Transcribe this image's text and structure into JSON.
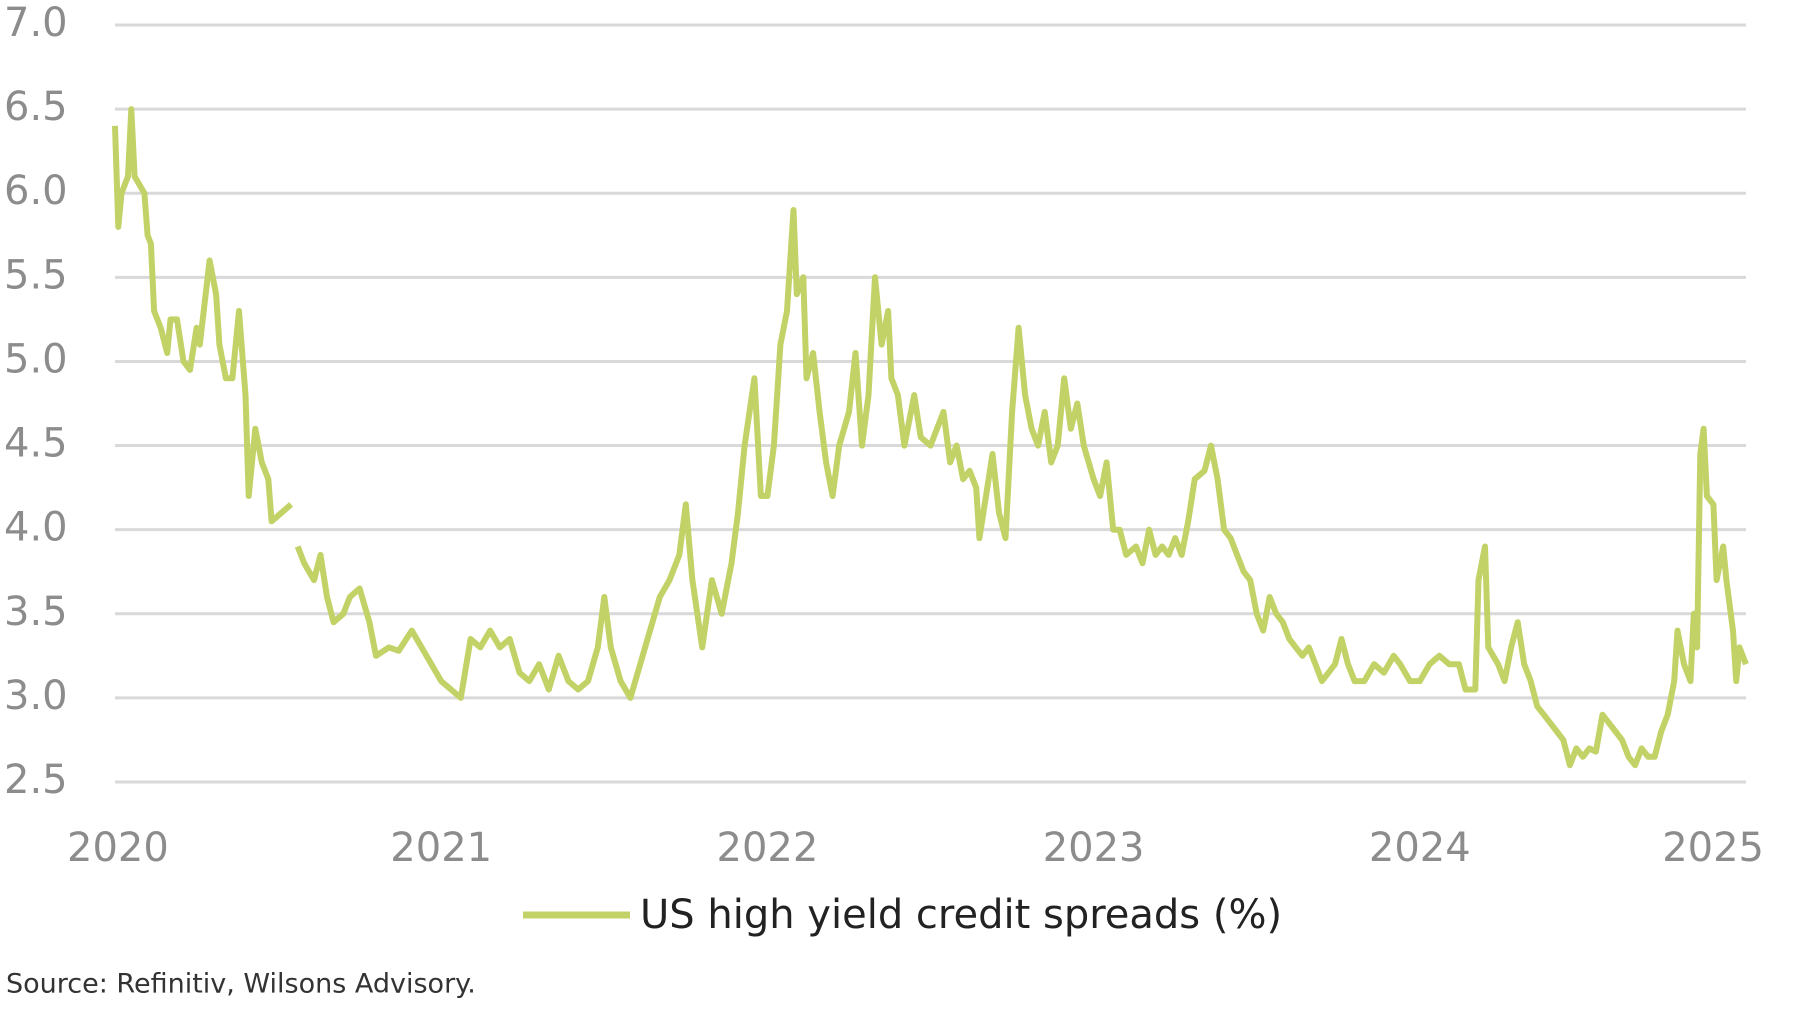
{
  "chart_data": {
    "type": "line",
    "x": [
      2020.0,
      2020.01,
      2020.02,
      2020.04,
      2020.05,
      2020.06,
      2020.09,
      2020.1,
      2020.11,
      2020.12,
      2020.14,
      2020.16,
      2020.17,
      2020.19,
      2020.21,
      2020.23,
      2020.25,
      2020.26,
      2020.29,
      2020.31,
      2020.32,
      2020.34,
      2020.36,
      2020.38,
      2020.4,
      2020.41,
      2020.43,
      2020.45,
      2020.47,
      2020.48,
      2020.51,
      2020.54,
      2020.55,
      2020.56,
      2020.58,
      2020.61,
      2020.63,
      2020.65,
      2020.67,
      2020.7,
      2020.72,
      2020.75,
      2020.78,
      2020.8,
      2020.84,
      2020.87,
      2020.91,
      2020.94,
      2020.97,
      2021.0,
      2021.03,
      2021.06,
      2021.09,
      2021.12,
      2021.15,
      2021.18,
      2021.21,
      2021.24,
      2021.27,
      2021.3,
      2021.33,
      2021.36,
      2021.39,
      2021.42,
      2021.45,
      2021.48,
      2021.5,
      2021.52,
      2021.55,
      2021.58,
      2021.61,
      2021.64,
      2021.67,
      2021.7,
      2021.73,
      2021.75,
      2021.77,
      2021.8,
      2021.83,
      2021.86,
      2021.89,
      2021.91,
      2021.93,
      2021.96,
      2021.98,
      2022.0,
      2022.02,
      2022.04,
      2022.06,
      2022.08,
      2022.09,
      2022.11,
      2022.12,
      2022.14,
      2022.16,
      2022.18,
      2022.2,
      2022.22,
      2022.25,
      2022.27,
      2022.29,
      2022.31,
      2022.33,
      2022.35,
      2022.37,
      2022.38,
      2022.4,
      2022.42,
      2022.45,
      2022.47,
      2022.5,
      2022.52,
      2022.54,
      2022.56,
      2022.58,
      2022.6,
      2022.62,
      2022.64,
      2022.65,
      2022.67,
      2022.69,
      2022.71,
      2022.73,
      2022.75,
      2022.77,
      2022.79,
      2022.81,
      2022.83,
      2022.85,
      2022.87,
      2022.89,
      2022.91,
      2022.93,
      2022.95,
      2022.97,
      2023.0,
      2023.02,
      2023.04,
      2023.06,
      2023.08,
      2023.1,
      2023.13,
      2023.15,
      2023.17,
      2023.19,
      2023.21,
      2023.23,
      2023.25,
      2023.27,
      2023.29,
      2023.31,
      2023.34,
      2023.36,
      2023.38,
      2023.4,
      2023.42,
      2023.44,
      2023.46,
      2023.48,
      2023.5,
      2023.52,
      2023.54,
      2023.56,
      2023.58,
      2023.6,
      2023.62,
      2023.64,
      2023.66,
      2023.68,
      2023.7,
      2023.72,
      2023.74,
      2023.76,
      2023.78,
      2023.8,
      2023.83,
      2023.86,
      2023.89,
      2023.92,
      2023.94,
      2023.97,
      2024.0,
      2024.03,
      2024.06,
      2024.09,
      2024.12,
      2024.14,
      2024.17,
      2024.18,
      2024.2,
      2024.21,
      2024.24,
      2024.26,
      2024.28,
      2024.3,
      2024.32,
      2024.34,
      2024.36,
      2024.38,
      2024.4,
      2024.42,
      2024.44,
      2024.46,
      2024.48,
      2024.5,
      2024.52,
      2024.54,
      2024.56,
      2024.58,
      2024.6,
      2024.62,
      2024.64,
      2024.66,
      2024.68,
      2024.7,
      2024.72,
      2024.74,
      2024.76,
      2024.78,
      2024.79,
      2024.81,
      2024.83,
      2024.84,
      2024.85,
      2024.86,
      2024.87,
      2024.88,
      2024.9,
      2024.91,
      2024.93,
      2024.94,
      2024.96,
      2024.97,
      2024.98,
      2024.99,
      2025.0
    ],
    "series": [
      {
        "name": "US high yield credit spreads (%)",
        "color": "#c3d266",
        "values": [
          6.4,
          5.8,
          6.0,
          6.1,
          6.5,
          6.1,
          6.0,
          5.75,
          5.7,
          5.3,
          5.2,
          5.05,
          5.25,
          5.25,
          5.0,
          4.95,
          5.2,
          5.1,
          5.6,
          5.4,
          5.1,
          4.9,
          4.9,
          5.3,
          4.8,
          4.2,
          4.6,
          4.4,
          4.3,
          4.05,
          4.1,
          4.15,
          null,
          3.9,
          3.8,
          3.7,
          3.85,
          3.6,
          3.45,
          3.5,
          3.6,
          3.65,
          3.45,
          3.25,
          3.3,
          3.28,
          3.4,
          3.3,
          3.2,
          3.1,
          3.05,
          3.0,
          3.35,
          3.3,
          3.4,
          3.3,
          3.35,
          3.15,
          3.1,
          3.2,
          3.05,
          3.25,
          3.1,
          3.05,
          3.1,
          3.3,
          3.6,
          3.3,
          3.1,
          3.0,
          3.2,
          3.4,
          3.6,
          3.7,
          3.85,
          4.15,
          3.7,
          3.3,
          3.7,
          3.5,
          3.8,
          4.1,
          4.5,
          4.9,
          4.2,
          4.2,
          4.5,
          5.1,
          5.3,
          5.9,
          5.4,
          5.5,
          4.9,
          5.05,
          4.7,
          4.4,
          4.2,
          4.5,
          4.7,
          5.05,
          4.5,
          4.8,
          5.5,
          5.1,
          5.3,
          4.9,
          4.8,
          4.5,
          4.8,
          4.55,
          4.5,
          4.6,
          4.7,
          4.4,
          4.5,
          4.3,
          4.35,
          4.25,
          3.95,
          4.2,
          4.45,
          4.1,
          3.95,
          4.7,
          5.2,
          4.8,
          4.6,
          4.5,
          4.7,
          4.4,
          4.5,
          4.9,
          4.6,
          4.75,
          4.5,
          4.3,
          4.2,
          4.4,
          4.0,
          4.0,
          3.85,
          3.9,
          3.8,
          4.0,
          3.85,
          3.9,
          3.85,
          3.95,
          3.85,
          4.05,
          4.3,
          4.35,
          4.5,
          4.3,
          4.0,
          3.95,
          3.85,
          3.75,
          3.7,
          3.5,
          3.4,
          3.6,
          3.5,
          3.45,
          3.35,
          3.3,
          3.25,
          3.3,
          3.2,
          3.1,
          3.15,
          3.2,
          3.35,
          3.2,
          3.1,
          3.1,
          3.2,
          3.15,
          3.25,
          3.2,
          3.1,
          3.1,
          3.2,
          3.25,
          3.2,
          3.2,
          3.05,
          3.05,
          3.7,
          3.9,
          3.3,
          3.2,
          3.1,
          3.3,
          3.45,
          3.2,
          3.1,
          2.95,
          2.9,
          2.85,
          2.8,
          2.75,
          2.6,
          2.7,
          2.65,
          2.7,
          2.68,
          2.9,
          2.85,
          2.8,
          2.75,
          2.65,
          2.6,
          2.7,
          2.65,
          2.65,
          2.8,
          2.9,
          3.1,
          3.4,
          3.2,
          3.1,
          3.5,
          3.3,
          4.45,
          4.6,
          4.2,
          4.15,
          3.7,
          3.9,
          3.7,
          3.4,
          3.1,
          3.3,
          3.25,
          3.2
        ]
      }
    ],
    "xlim": [
      2020,
      2025
    ],
    "xticks": [
      2020,
      2021,
      2022,
      2023,
      2024,
      2025
    ],
    "ylim": [
      2.5,
      7.0
    ],
    "yticks": [
      {
        "value": 2.5,
        "label": "2.5"
      },
      {
        "value": 3,
        "label": "3.0"
      },
      3.5,
      {
        "value": 4,
        "label": "4.0"
      },
      4.5,
      {
        "value": 5,
        "label": "5.0"
      },
      5.5,
      {
        "value": 6,
        "label": "6.0"
      },
      6.5,
      {
        "value": 7,
        "label": "7.0"
      }
    ],
    "grid": true,
    "source": "Source: Refinitiv, Wilsons Advisory."
  }
}
